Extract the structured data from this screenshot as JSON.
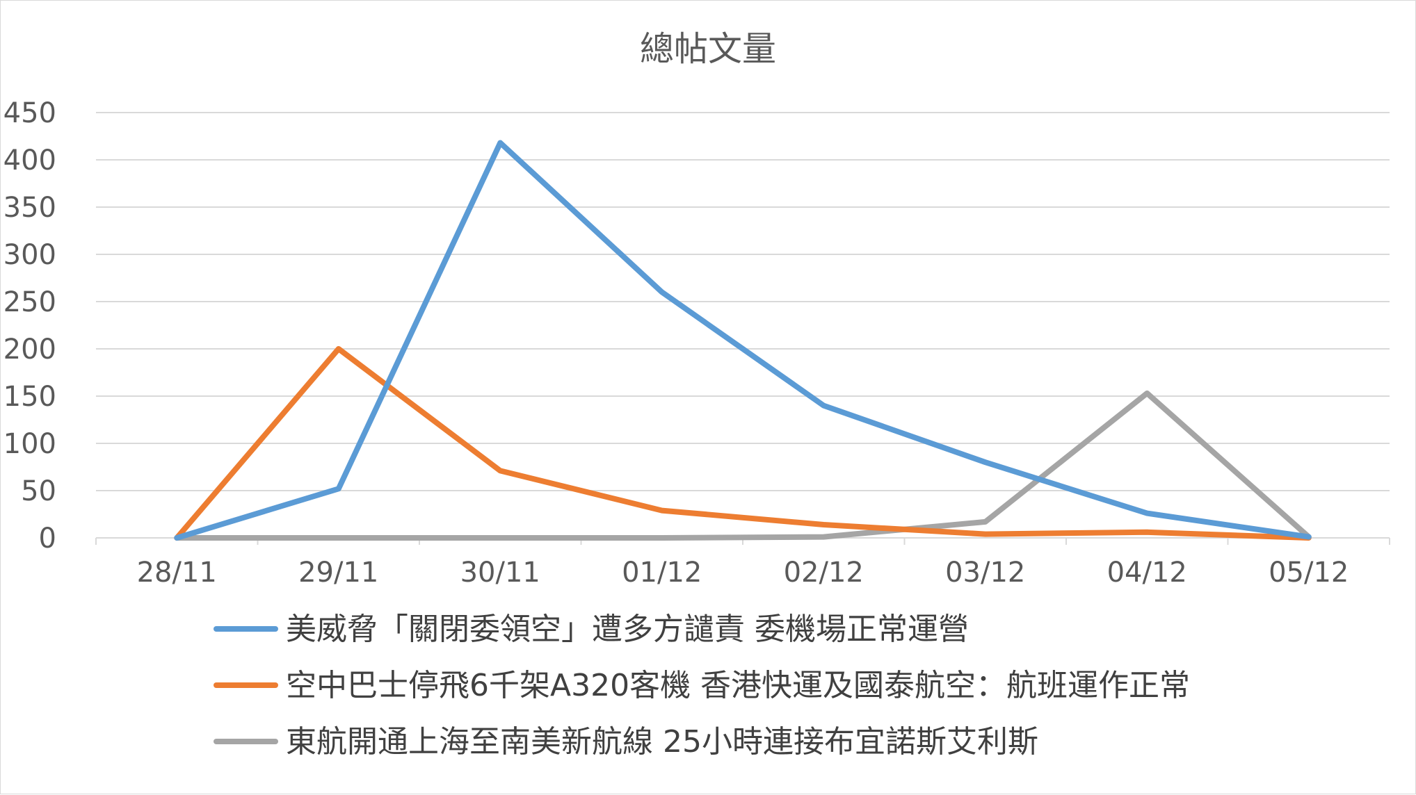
{
  "chart_data": {
    "type": "line",
    "title": "總帖文量",
    "xlabel": "",
    "ylabel": "",
    "categories": [
      "28/11",
      "29/11",
      "30/11",
      "01/12",
      "02/12",
      "03/12",
      "04/12",
      "05/12"
    ],
    "ylim": [
      0,
      450
    ],
    "yticks": [
      0,
      50,
      100,
      150,
      200,
      250,
      300,
      350,
      400,
      450
    ],
    "grid": true,
    "legend_position": "bottom",
    "series": [
      {
        "name": "美威脅「關閉委領空」遭多方譴責 委機場正常運營",
        "color": "#5B9BD5",
        "values": [
          0,
          52,
          418,
          260,
          140,
          80,
          26,
          1
        ]
      },
      {
        "name": "空中巴士停飛6千架A320客機 香港快運及國泰航空：航班運作正常",
        "color": "#ED7D31",
        "values": [
          0,
          200,
          71,
          29,
          14,
          4,
          6,
          0
        ]
      },
      {
        "name": "東航開通上海至南美新航線 25小時連接布宜諾斯艾利斯",
        "color": "#A5A5A5",
        "values": [
          0,
          0,
          0,
          0,
          1,
          17,
          153,
          1
        ]
      }
    ]
  }
}
